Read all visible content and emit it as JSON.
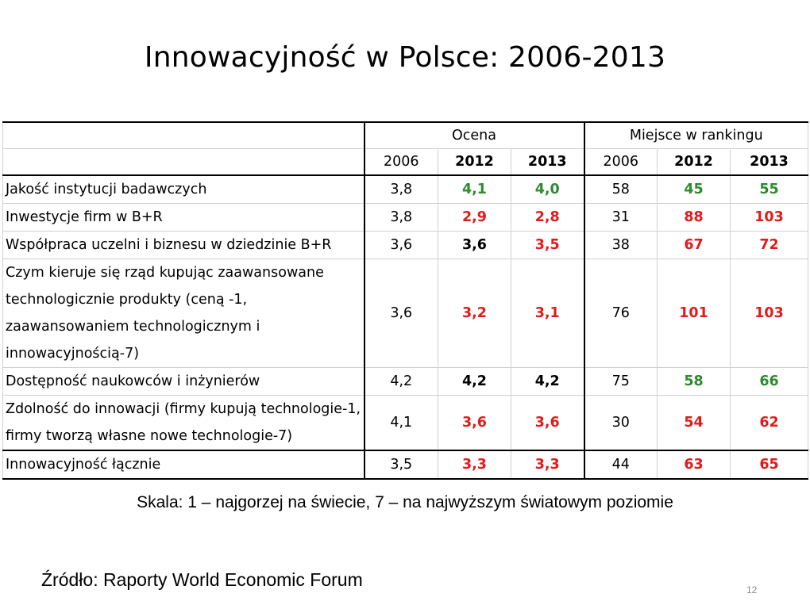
{
  "title": "Innowacyjność w Polsce: 2006-2013",
  "table": {
    "group_headers": {
      "ocena": "Ocena",
      "miejsce": "Miejsce w rankingu"
    },
    "year_headers": [
      "2006",
      "2012",
      "2013",
      "2006",
      "2012",
      "2013"
    ],
    "rows": [
      {
        "label": "Jakość instytucji badawczych",
        "values": [
          "3,8",
          "4,1",
          "4,0",
          "58",
          "45",
          "55"
        ],
        "colors": [
          "#000000",
          "#2e8b2e",
          "#2e8b2e",
          "#000000",
          "#2e8b2e",
          "#2e8b2e"
        ]
      },
      {
        "label": "Inwestycje firm w B+R",
        "values": [
          "3,8",
          "2,9",
          "2,8",
          "31",
          "88",
          "103"
        ],
        "colors": [
          "#000000",
          "#e01b1b",
          "#e01b1b",
          "#000000",
          "#e01b1b",
          "#e01b1b"
        ]
      },
      {
        "label": "Współpraca uczelni i biznesu w dziedzinie B+R",
        "values": [
          "3,6",
          "3,6",
          "3,5",
          "38",
          "67",
          "72"
        ],
        "colors": [
          "#000000",
          "#000000",
          "#e01b1b",
          "#000000",
          "#e01b1b",
          "#e01b1b"
        ]
      },
      {
        "label": "Czym kieruje się rząd kupując zaawansowane technologicznie produkty (ceną -1, zaawansowaniem technologicznym i innowacyjnością-7)",
        "values": [
          "3,6",
          "3,2",
          "3,1",
          "76",
          "101",
          "103"
        ],
        "colors": [
          "#000000",
          "#e01b1b",
          "#e01b1b",
          "#000000",
          "#e01b1b",
          "#e01b1b"
        ]
      },
      {
        "label": "Dostępność naukowców i inżynierów",
        "values": [
          "4,2",
          "4,2",
          "4,2",
          "75",
          "58",
          "66"
        ],
        "colors": [
          "#000000",
          "#000000",
          "#000000",
          "#000000",
          "#2e8b2e",
          "#2e8b2e"
        ]
      },
      {
        "label": "Zdolność do innowacji (firmy kupują technologie-1, firmy tworzą własne nowe technologie-7)",
        "values": [
          "4,1",
          "3,6",
          "3,6",
          "30",
          "54",
          "62"
        ],
        "colors": [
          "#000000",
          "#e01b1b",
          "#e01b1b",
          "#000000",
          "#e01b1b",
          "#e01b1b"
        ]
      },
      {
        "label": "Innowacyjność łącznie",
        "values": [
          "3,5",
          "3,3",
          "3,3",
          "44",
          "63",
          "65"
        ],
        "colors": [
          "#000000",
          "#e01b1b",
          "#e01b1b",
          "#000000",
          "#e01b1b",
          "#e01b1b"
        ]
      }
    ]
  },
  "scale_note": "Skala: 1 – najgorzej na świecie, 7 – na najwyższym światowym poziomie",
  "source_note": "Źródło: Raporty World Economic Forum",
  "page_number": "12"
}
